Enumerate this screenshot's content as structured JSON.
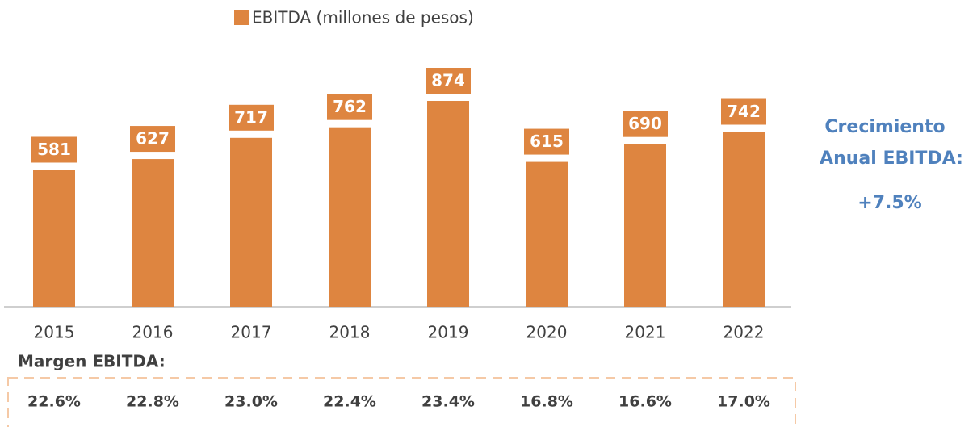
{
  "chart_data": {
    "type": "bar",
    "legend": "top",
    "categories": [
      "2015",
      "2016",
      "2017",
      "2018",
      "2019",
      "2020",
      "2021",
      "2022"
    ],
    "series": [
      {
        "name": "EBITDA (millones de pesos)",
        "color": "#DE8540",
        "values": [
          581,
          627,
          717,
          762,
          874,
          615,
          690,
          742
        ]
      }
    ],
    "annotations": [
      "Crecimiento",
      "Anual EBITDA:",
      "+7.5%"
    ],
    "margin_title": "Margen EBITDA:",
    "margin_labels": [
      "22.6%",
      "22.8%",
      "23.0%",
      "22.4%",
      "23.4%",
      "16.8%",
      "16.6%",
      "17.0%"
    ]
  }
}
